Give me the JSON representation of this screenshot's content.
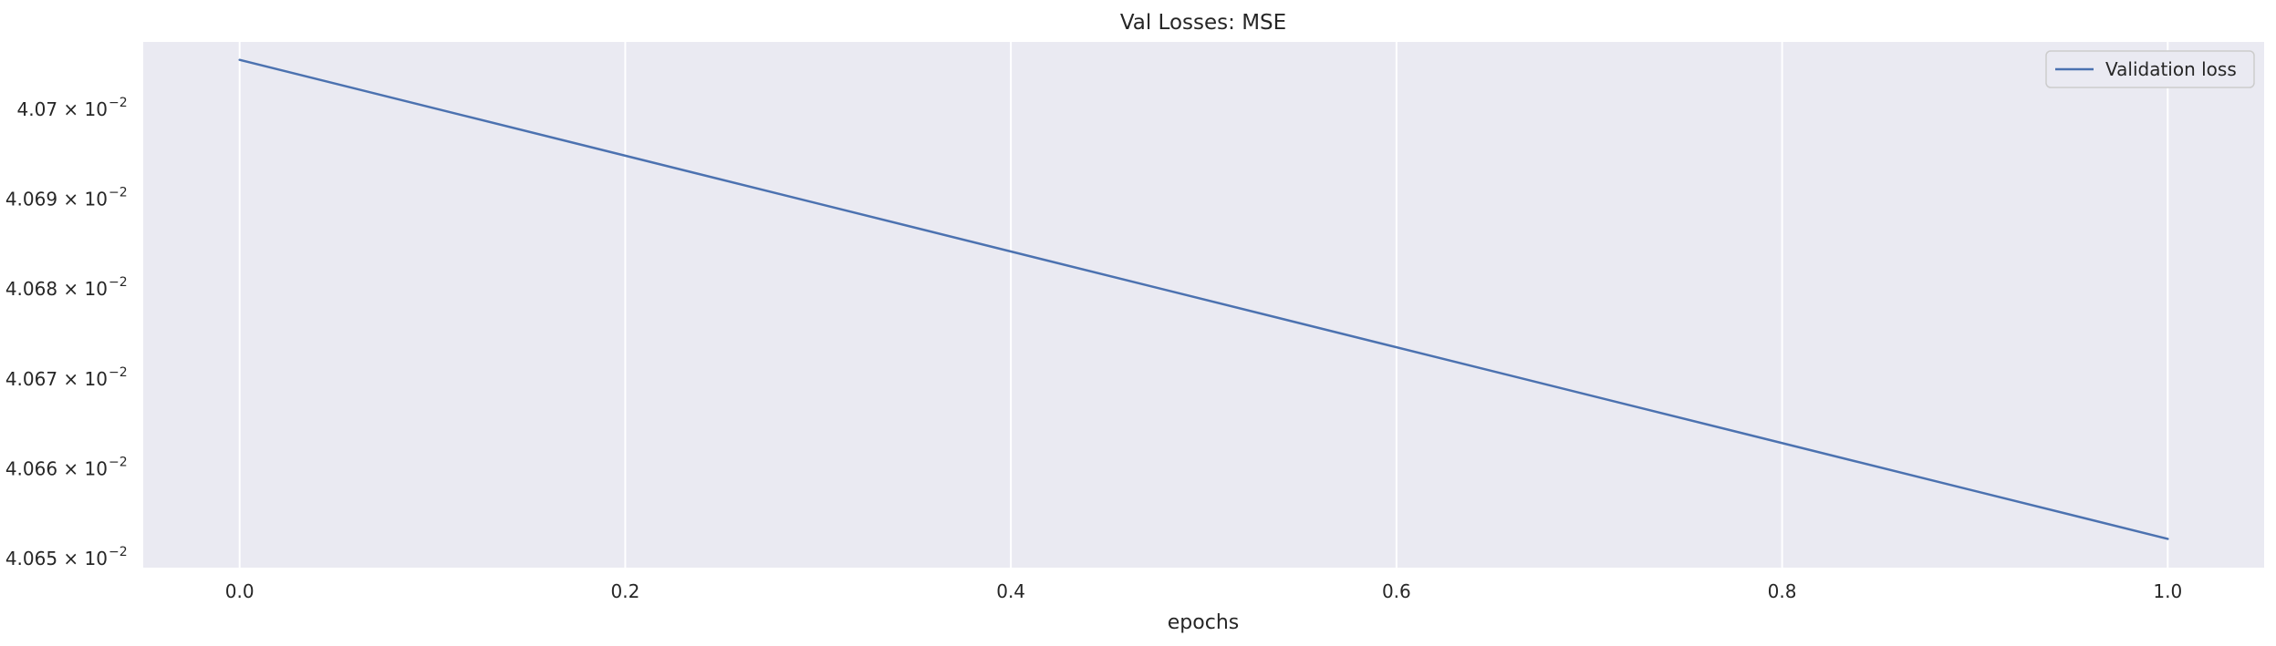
{
  "chart_data": {
    "type": "line",
    "title": "Val Losses:  MSE",
    "xlabel": "epochs",
    "ylabel": "",
    "yscale": "log",
    "xlim": [
      -0.05,
      1.05
    ],
    "ylim": [
      0.040649,
      0.0407075
    ],
    "grid": true,
    "x_ticks": [
      {
        "value": 0.0,
        "label": "0.0"
      },
      {
        "value": 0.2,
        "label": "0.2"
      },
      {
        "value": 0.4,
        "label": "0.4"
      },
      {
        "value": 0.6,
        "label": "0.6"
      },
      {
        "value": 0.8,
        "label": "0.8"
      },
      {
        "value": 1.0,
        "label": "1.0"
      }
    ],
    "y_ticks": [
      {
        "value": 0.0407,
        "mantissa": "4.07",
        "exponent": "−2"
      },
      {
        "value": 0.04069,
        "mantissa": "4.069",
        "exponent": "−2"
      },
      {
        "value": 0.04068,
        "mantissa": "4.068",
        "exponent": "−2"
      },
      {
        "value": 0.04067,
        "mantissa": "4.067",
        "exponent": "−2"
      },
      {
        "value": 0.04066,
        "mantissa": "4.066",
        "exponent": "−2"
      },
      {
        "value": 0.04065,
        "mantissa": "4.065",
        "exponent": "−2"
      }
    ],
    "series": [
      {
        "name": "Validation loss",
        "color": "#4c72b0",
        "x": [
          0.0,
          1.0
        ],
        "y": [
          0.0407055,
          0.0406522
        ]
      }
    ],
    "legend": {
      "position": "top-right"
    },
    "colors": {
      "plot_background": "#eaeaf2",
      "grid": "#ffffff",
      "line": "#4c72b0"
    }
  }
}
